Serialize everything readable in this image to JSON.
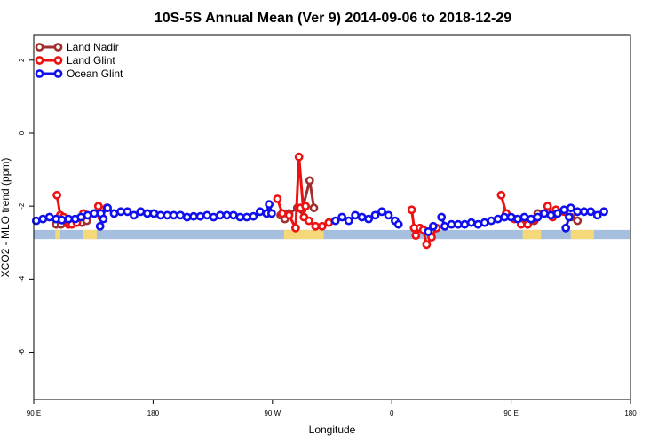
{
  "chart_data": {
    "type": "line",
    "title": "10S-5S Annual Mean (Ver 9)   2014-09-06 to 2018-12-29",
    "xlabel": "Longitude",
    "ylabel": "XCO2 - MLO trend (ppm)",
    "xlim": [
      90,
      450
    ],
    "ylim": [
      -7.3,
      2.7
    ],
    "x_ticks": [
      {
        "value": 90,
        "label": "90 E"
      },
      {
        "value": 162,
        "label": "180"
      },
      {
        "value": 234,
        "label": "90 W"
      },
      {
        "value": 306,
        "label": "0"
      },
      {
        "value": 378,
        "label": "90 E"
      },
      {
        "value": 450,
        "label": "180"
      }
    ],
    "y_ticks": [
      {
        "value": 2,
        "label": "2"
      },
      {
        "value": 0,
        "label": "0"
      },
      {
        "value": -2,
        "label": "-2"
      },
      {
        "value": -4,
        "label": "-4"
      },
      {
        "value": -6,
        "label": "-6"
      }
    ],
    "legend_position": "top-left",
    "colors": {
      "ocean_band": "#a7bfdf",
      "land_band": "#f5d87a",
      "land_nadir": "#a03030",
      "land_glint": "#ee1111",
      "ocean_glint": "#1010ee"
    },
    "land_band_segments": [
      [
        103,
        106
      ],
      [
        120,
        128
      ],
      [
        241,
        265
      ],
      [
        385,
        396
      ],
      [
        414,
        428
      ]
    ],
    "band_range": [
      -2.65,
      -2.9
    ],
    "series": [
      {
        "name": "Land Nadir",
        "color": "#a03030",
        "segments": [
          [
            [
              103.5,
              -2.5
            ],
            [
              106.5,
              -2.5
            ]
          ],
          [
            [
              119,
              -2.45
            ],
            [
              122,
              -2.4
            ]
          ],
          [
            [
              239,
              -2.25
            ],
            [
              241.5,
              -2.35
            ],
            [
              244,
              -2.2
            ],
            [
              249,
              -2.05
            ],
            [
              252,
              -2.1
            ],
            [
              256.5,
              -1.3
            ],
            [
              259,
              -2.05
            ]
          ],
          [
            [
              385,
              -2.45
            ],
            [
              388,
              -2.5
            ],
            [
              392,
              -2.4
            ],
            [
              394,
              -2.2
            ]
          ],
          [
            [
              414,
              -2.3
            ],
            [
              418,
              -2.4
            ]
          ]
        ]
      },
      {
        "name": "Land Glint",
        "color": "#ee1111",
        "segments": [
          [
            [
              104,
              -1.7
            ],
            [
              106,
              -2.25
            ],
            [
              108,
              -2.3
            ],
            [
              111,
              -2.5
            ],
            [
              113,
              -2.5
            ],
            [
              116,
              -2.45
            ],
            [
              119,
              -2.3
            ],
            [
              120,
              -2.2
            ]
          ],
          [
            [
              129,
              -2.0
            ],
            [
              131,
              -2.3
            ],
            [
              134,
              -2.05
            ]
          ],
          [
            [
              237,
              -1.8
            ],
            [
              240,
              -2.2
            ],
            [
              244,
              -2.25
            ],
            [
              248,
              -2.6
            ],
            [
              250,
              -0.65
            ],
            [
              253,
              -2.3
            ],
            [
              256,
              -2.4
            ],
            [
              260,
              -2.55
            ],
            [
              264,
              -2.55
            ],
            [
              268,
              -2.45
            ]
          ],
          [
            [
              318,
              -2.1
            ],
            [
              319.5,
              -2.6
            ],
            [
              320.5,
              -2.8
            ],
            [
              323,
              -2.6
            ],
            [
              325,
              -2.65
            ],
            [
              327,
              -3.05
            ],
            [
              330,
              -2.85
            ],
            [
              333,
              -2.6
            ]
          ],
          [
            [
              372,
              -1.7
            ],
            [
              375,
              -2.2
            ],
            [
              380,
              -2.35
            ],
            [
              384,
              -2.5
            ],
            [
              388,
              -2.5
            ],
            [
              392,
              -2.35
            ]
          ],
          [
            [
              400,
              -2.0
            ],
            [
              403,
              -2.3
            ],
            [
              405,
              -2.1
            ],
            [
              410,
              -2.15
            ]
          ],
          [
            [
              251,
              -2.05
            ],
            [
              254,
              -2.0
            ]
          ]
        ]
      },
      {
        "name": "Ocean Glint",
        "color": "#1010ee",
        "segments": [
          [
            [
              91.5,
              -2.4
            ],
            [
              95.5,
              -2.35
            ],
            [
              99.5,
              -2.3
            ],
            [
              103.5,
              -2.35
            ],
            [
              107,
              -2.38
            ],
            [
              111,
              -2.35
            ],
            [
              115,
              -2.35
            ],
            [
              118.5,
              -2.3
            ],
            [
              122.5,
              -2.25
            ],
            [
              126.5,
              -2.2
            ],
            [
              130.5,
              -2.2
            ],
            [
              134.5,
              -2.05
            ],
            [
              138.5,
              -2.2
            ],
            [
              142.5,
              -2.15
            ],
            [
              146.5,
              -2.15
            ],
            [
              150.5,
              -2.25
            ],
            [
              154.5,
              -2.15
            ],
            [
              158.5,
              -2.2
            ],
            [
              162.5,
              -2.2
            ],
            [
              166.5,
              -2.25
            ],
            [
              170.5,
              -2.25
            ],
            [
              174.5,
              -2.25
            ],
            [
              178.5,
              -2.25
            ],
            [
              182.5,
              -2.3
            ],
            [
              186.5,
              -2.28
            ],
            [
              190.5,
              -2.28
            ],
            [
              194.5,
              -2.25
            ],
            [
              198.5,
              -2.3
            ],
            [
              202.5,
              -2.25
            ],
            [
              206.5,
              -2.25
            ],
            [
              210.5,
              -2.25
            ],
            [
              214.5,
              -2.3
            ],
            [
              218.5,
              -2.3
            ],
            [
              222.5,
              -2.28
            ],
            [
              226.5,
              -2.15
            ],
            [
              230.5,
              -2.2
            ],
            [
              232,
              -1.95
            ],
            [
              233.5,
              -2.2
            ]
          ],
          [
            [
              130,
              -2.55
            ],
            [
              132,
              -2.35
            ]
          ],
          [
            [
              272,
              -2.4
            ],
            [
              276,
              -2.3
            ],
            [
              280,
              -2.4
            ],
            [
              284,
              -2.25
            ],
            [
              288,
              -2.3
            ],
            [
              292,
              -2.35
            ],
            [
              296,
              -2.25
            ],
            [
              300,
              -2.15
            ],
            [
              304,
              -2.25
            ],
            [
              308,
              -2.4
            ],
            [
              310,
              -2.5
            ]
          ],
          [
            [
              336,
              -2.3
            ],
            [
              338,
              -2.55
            ],
            [
              342,
              -2.5
            ],
            [
              346,
              -2.5
            ],
            [
              350,
              -2.5
            ],
            [
              354,
              -2.45
            ],
            [
              358,
              -2.5
            ],
            [
              362,
              -2.45
            ],
            [
              366,
              -2.4
            ],
            [
              370,
              -2.35
            ],
            [
              374,
              -2.3
            ],
            [
              378,
              -2.3
            ],
            [
              382,
              -2.35
            ],
            [
              386,
              -2.3
            ],
            [
              390,
              -2.35
            ],
            [
              394,
              -2.3
            ],
            [
              398,
              -2.2
            ],
            [
              402,
              -2.25
            ],
            [
              406,
              -2.2
            ],
            [
              410,
              -2.1
            ],
            [
              414,
              -2.05
            ],
            [
              418,
              -2.15
            ],
            [
              422,
              -2.15
            ],
            [
              426,
              -2.15
            ],
            [
              430,
              -2.25
            ],
            [
              434,
              -2.15
            ]
          ],
          [
            [
              328,
              -2.7
            ],
            [
              331,
              -2.55
            ]
          ],
          [
            [
              411,
              -2.6
            ],
            [
              413,
              -2.3
            ]
          ]
        ]
      }
    ]
  }
}
